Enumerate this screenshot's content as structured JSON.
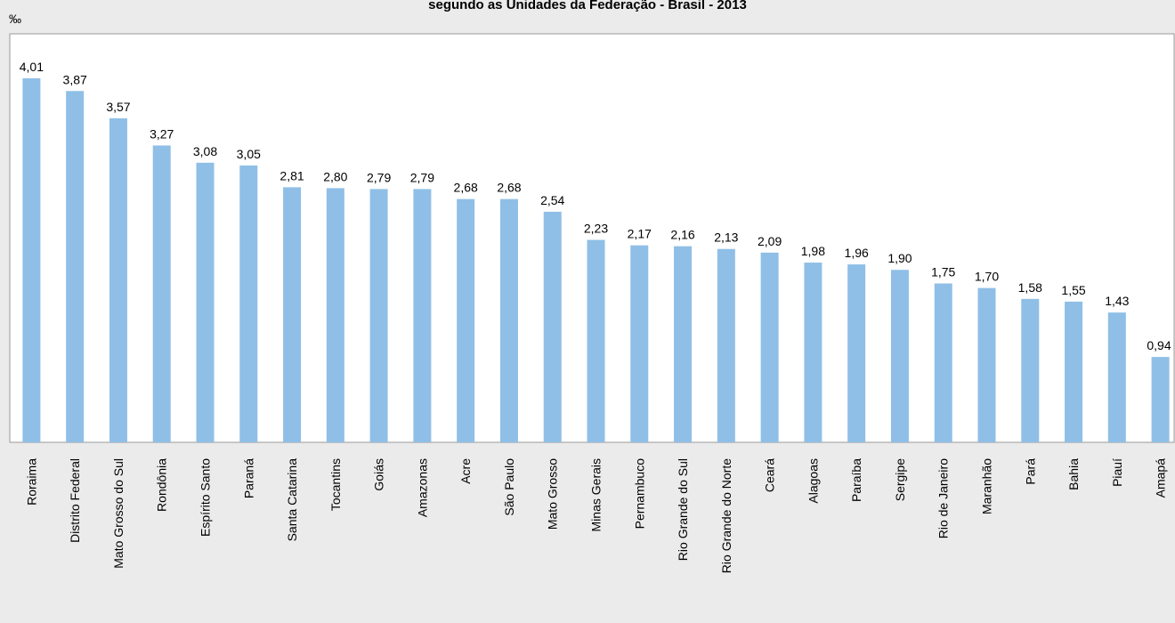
{
  "chart_data": {
    "type": "bar",
    "title": "segundo as Unidades da Federação - Brasil - 2013",
    "y_label": "‰",
    "categories": [
      "Roraima",
      "Distrito Federal",
      "Mato Grosso do Sul",
      "Rondônia",
      "Espírito Santo",
      "Paraná",
      "Santa Catarina",
      "Tocantins",
      "Goiás",
      "Amazonas",
      "Acre",
      "São Paulo",
      "Mato Grosso",
      "Minas Gerais",
      "Pernambuco",
      "Rio Grande do Sul",
      "Rio Grande do Norte",
      "Ceará",
      "Alagoas",
      "Paraíba",
      "Sergipe",
      "Rio de Janeiro",
      "Maranhão",
      "Pará",
      "Bahia",
      "Piauí",
      "Amapá"
    ],
    "values": [
      4.01,
      3.87,
      3.57,
      3.27,
      3.08,
      3.05,
      2.81,
      2.8,
      2.79,
      2.79,
      2.68,
      2.68,
      2.54,
      2.23,
      2.17,
      2.16,
      2.13,
      2.09,
      1.98,
      1.96,
      1.9,
      1.75,
      1.7,
      1.58,
      1.55,
      1.43,
      0.94
    ],
    "value_labels": [
      "4,01",
      "3,87",
      "3,57",
      "3,27",
      "3,08",
      "3,05",
      "2,81",
      "2,80",
      "2,79",
      "2,79",
      "2,68",
      "2,68",
      "2,54",
      "2,23",
      "2,17",
      "2,16",
      "2,13",
      "2,09",
      "1,98",
      "1,96",
      "1,90",
      "1,75",
      "1,70",
      "1,58",
      "1,55",
      "1,43",
      "0,94"
    ],
    "color": "#8fbfe6",
    "ylim": [
      0,
      4.5
    ]
  }
}
